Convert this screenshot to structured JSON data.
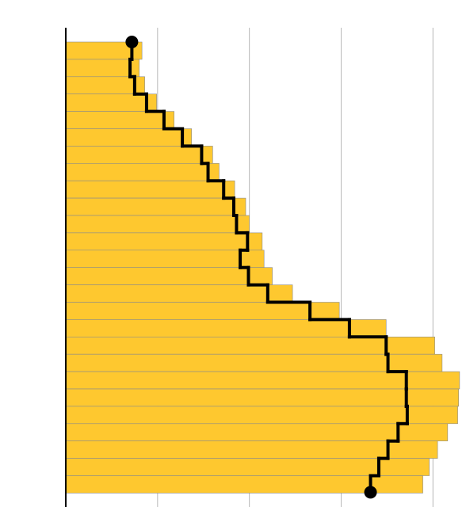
{
  "chart_data": {
    "type": "bar",
    "orientation": "horizontal",
    "series": [
      {
        "type": "bar",
        "color": "#fec82f",
        "values": [
          83,
          80,
          86,
          99,
          118,
          137,
          160,
          167,
          184,
          196,
          200,
          214,
          216,
          225,
          247,
          298,
          349,
          402,
          410,
          429,
          428,
          427,
          416,
          405,
          396,
          389
        ]
      },
      {
        "type": "step",
        "color": "#000000",
        "values": [
          72,
          70,
          75,
          88,
          107,
          127,
          148,
          155,
          172,
          183,
          186,
          198,
          190,
          199,
          220,
          266,
          309,
          349,
          351,
          371,
          371,
          372,
          362,
          351,
          341,
          332
        ]
      }
    ],
    "xlim": [
      0,
      436
    ],
    "xticks": [
      0,
      100,
      200,
      300,
      400
    ],
    "grid": true
  }
}
